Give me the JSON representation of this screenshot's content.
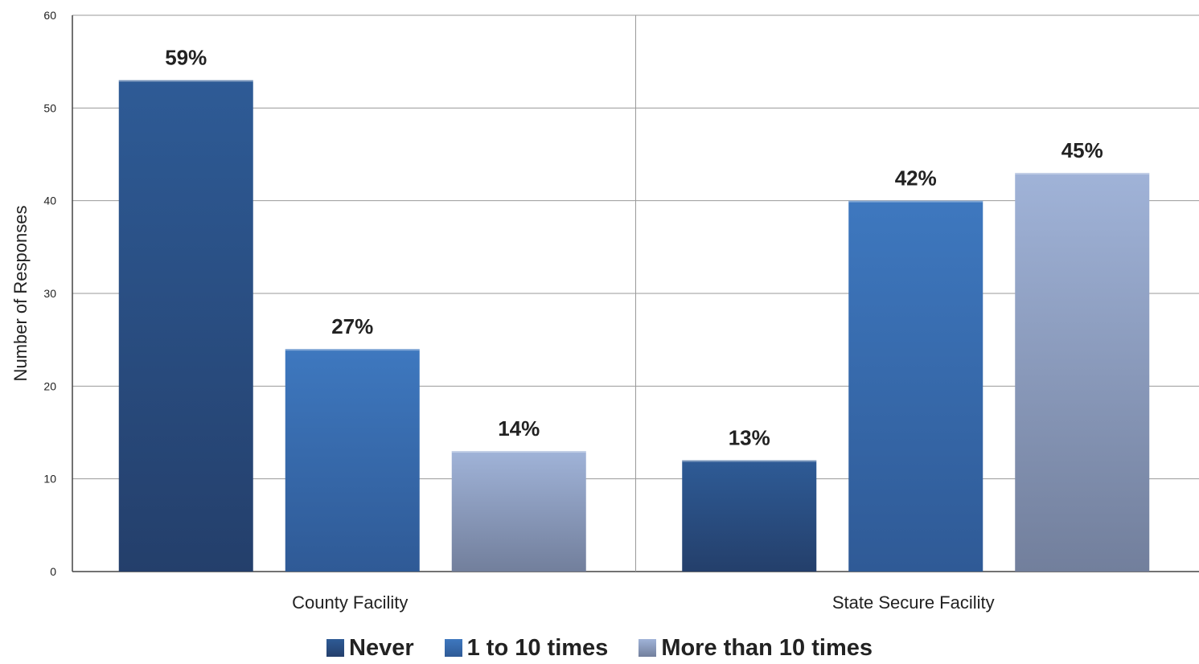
{
  "chart_data": {
    "type": "bar",
    "title": "",
    "xlabel": "",
    "ylabel": "Number of Responses",
    "ylim": [
      0,
      60
    ],
    "yticks": [
      0,
      10,
      20,
      30,
      40,
      50,
      60
    ],
    "categories": [
      "County Facility",
      "State Secure Facility"
    ],
    "series": [
      {
        "name": "Never",
        "values": [
          53,
          12
        ],
        "labels": [
          "59%",
          "13%"
        ],
        "color": "#2f5a93"
      },
      {
        "name": "1 to 10 times",
        "values": [
          24,
          40
        ],
        "labels": [
          "27%",
          "42%"
        ],
        "color": "#3a6fb5"
      },
      {
        "name": "More than 10 times",
        "values": [
          13,
          43
        ],
        "labels": [
          "14%",
          "45%"
        ],
        "color": "#8c9fc4"
      }
    ],
    "grid": true,
    "legend_position": "bottom"
  }
}
